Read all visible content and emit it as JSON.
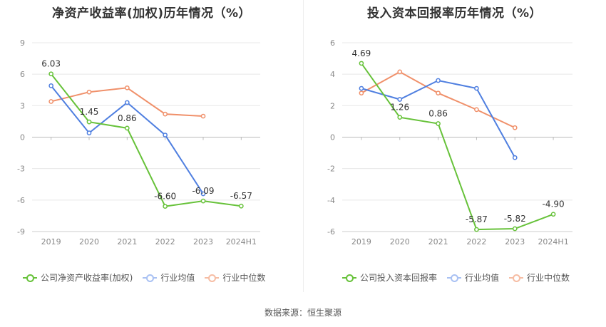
{
  "legend": {
    "left": [
      "公司净资产收益率(加权)",
      "行业均值",
      "行业中位数"
    ],
    "right": [
      "公司投入资本回报率",
      "行业均值",
      "行业中位数"
    ]
  },
  "source": "数据来源：恒生聚源",
  "colors": {
    "company": "#67c23a",
    "average": "#4f7fe0",
    "median": "#f0906a"
  },
  "chart_data": [
    {
      "type": "line",
      "title": "净资产收益率(加权)历年情况（%）",
      "categories": [
        "2019",
        "2020",
        "2021",
        "2022",
        "2023",
        "2024H1"
      ],
      "ylim": [
        -9,
        9
      ],
      "yticks": [
        9,
        6,
        3,
        0,
        -3,
        -6,
        -9
      ],
      "grid": true,
      "legend_position": "bottom",
      "series": [
        {
          "name": "公司净资产收益率(加权)",
          "role": "company",
          "values": [
            6.03,
            1.45,
            0.86,
            -6.6,
            -6.09,
            -6.57
          ],
          "labels": [
            "6.03",
            "1.45",
            "0.86",
            "-6.60",
            "-6.09",
            "-6.57"
          ]
        },
        {
          "name": "行业均值",
          "role": "average",
          "values": [
            4.9,
            0.4,
            3.3,
            0.2,
            -5.4,
            null
          ]
        },
        {
          "name": "行业中位数",
          "role": "median",
          "values": [
            3.4,
            4.3,
            4.7,
            2.2,
            2.0,
            null
          ]
        }
      ]
    },
    {
      "type": "line",
      "title": "投入资本回报率历年情况（%）",
      "categories": [
        "2019",
        "2020",
        "2021",
        "2022",
        "2023",
        "2024H1"
      ],
      "ylim": [
        -6,
        6
      ],
      "yticks": [
        6,
        4,
        2,
        0,
        -2,
        -4,
        -6
      ],
      "grid": true,
      "legend_position": "bottom",
      "series": [
        {
          "name": "公司投入资本回报率",
          "role": "company",
          "values": [
            4.69,
            1.26,
            0.86,
            -5.87,
            -5.82,
            -4.9
          ],
          "labels": [
            "4.69",
            "1.26",
            "0.86",
            "-5.87",
            "-5.82",
            "-4.90"
          ]
        },
        {
          "name": "行业均值",
          "role": "average",
          "values": [
            3.1,
            2.4,
            3.6,
            3.1,
            -1.3,
            null
          ]
        },
        {
          "name": "行业中位数",
          "role": "median",
          "values": [
            2.8,
            4.15,
            2.8,
            1.75,
            0.6,
            null
          ]
        }
      ]
    }
  ]
}
